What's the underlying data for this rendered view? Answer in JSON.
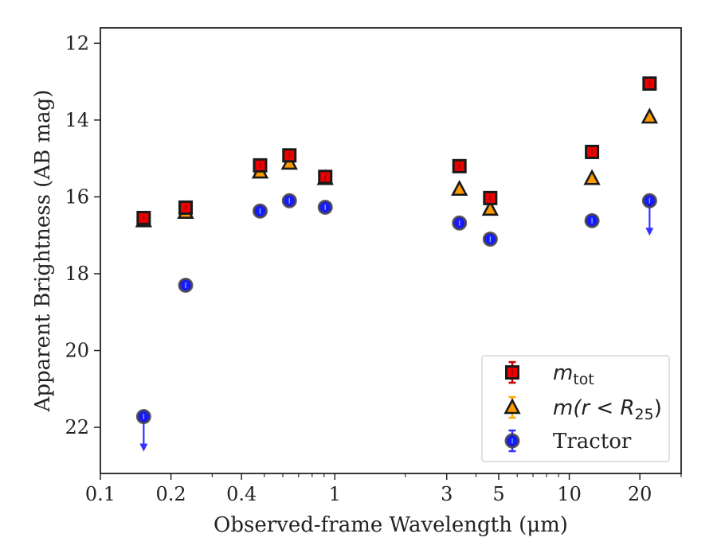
{
  "chart_data": {
    "type": "scatter",
    "title": "",
    "xlabel": "Observed-frame Wavelength (μm)",
    "ylabel": "Apparent Brightness (AB mag)",
    "xscale": "log",
    "xlim": [
      0.1,
      30
    ],
    "ylim": [
      23.2,
      11.6
    ],
    "y_inverted": true,
    "x_ticks": [
      {
        "value": 0.1,
        "label": "0.1"
      },
      {
        "value": 0.2,
        "label": "0.2"
      },
      {
        "value": 0.4,
        "label": "0.4"
      },
      {
        "value": 1,
        "label": "1"
      },
      {
        "value": 3,
        "label": "3"
      },
      {
        "value": 5,
        "label": "5"
      },
      {
        "value": 10,
        "label": "10"
      },
      {
        "value": 20,
        "label": "20"
      }
    ],
    "y_ticks": [
      12,
      14,
      16,
      18,
      20,
      22
    ],
    "grid": false,
    "legend_position": "bottom-right",
    "series": [
      {
        "name": "m_tot",
        "legend": {
          "base": "m",
          "sub": "tot"
        },
        "marker": "square",
        "color": "#ee0000",
        "points": [
          {
            "x": 0.153,
            "y": 16.55
          },
          {
            "x": 0.231,
            "y": 16.28
          },
          {
            "x": 0.48,
            "y": 15.18
          },
          {
            "x": 0.64,
            "y": 14.92
          },
          {
            "x": 0.91,
            "y": 15.48
          },
          {
            "x": 3.4,
            "y": 15.2
          },
          {
            "x": 4.6,
            "y": 16.03
          },
          {
            "x": 12.5,
            "y": 14.83
          },
          {
            "x": 22.0,
            "y": 13.05
          }
        ]
      },
      {
        "name": "m(r < R25)",
        "legend": {
          "base": "m(r < R",
          "sub": "25",
          "tail": ")"
        },
        "marker": "triangle",
        "color": "#ff9900",
        "points": [
          {
            "x": 0.153,
            "y": 16.62
          },
          {
            "x": 0.231,
            "y": 16.4
          },
          {
            "x": 0.48,
            "y": 15.35
          },
          {
            "x": 0.64,
            "y": 15.12
          },
          {
            "x": 0.91,
            "y": 15.52
          },
          {
            "x": 3.4,
            "y": 15.8
          },
          {
            "x": 4.6,
            "y": 16.32
          },
          {
            "x": 12.5,
            "y": 15.52
          },
          {
            "x": 22.0,
            "y": 13.92
          }
        ]
      },
      {
        "name": "Tractor",
        "legend": {
          "base": "Tractor"
        },
        "marker": "circle",
        "color": "#0000ff",
        "points": [
          {
            "x": 0.153,
            "y": 21.72,
            "upper_limit": true
          },
          {
            "x": 0.231,
            "y": 18.3
          },
          {
            "x": 0.48,
            "y": 16.37
          },
          {
            "x": 0.64,
            "y": 16.1
          },
          {
            "x": 0.91,
            "y": 16.27
          },
          {
            "x": 3.4,
            "y": 16.68
          },
          {
            "x": 4.6,
            "y": 17.1
          },
          {
            "x": 12.5,
            "y": 16.62
          },
          {
            "x": 22.0,
            "y": 16.1,
            "upper_limit": true
          }
        ]
      }
    ]
  }
}
